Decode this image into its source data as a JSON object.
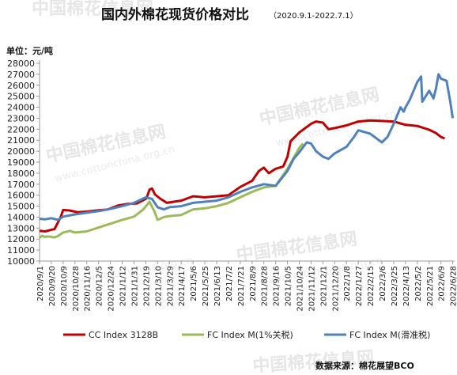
{
  "chart_data": {
    "type": "line",
    "title": "国内外棉花现货价格对比",
    "subtitle": "（2020.9.1-2022.7.1）",
    "unit_label": "单位：元/吨",
    "source": "数据来源：棉花展望BCO",
    "watermark": {
      "text": "中国棉花信息网",
      "url": "www.cottonchina.org.cn"
    },
    "ylim": [
      10000,
      28000
    ],
    "ytick_step": 1000,
    "grid": false,
    "legend_position": "bottom",
    "x_tick_labels": [
      "2020/9/1",
      "2020/9/20",
      "2020/10/9",
      "2020/10/28",
      "2020/11/16",
      "2020/12/5",
      "2020/12/24",
      "2021/1/12",
      "2021/1/31",
      "2021/2/19",
      "2021/3/10",
      "2021/3/29",
      "2021/4/17",
      "2021/5/6",
      "2021/5/25",
      "2021/6/13",
      "2021/7/2",
      "2021/7/21",
      "2021/8/9",
      "2021/8/28",
      "2021/9/16",
      "2021/10/5",
      "2021/10/24",
      "2021/11/12",
      "2021/12/1",
      "2021/12/20",
      "2022/1/8",
      "2022/1/27",
      "2022/2/15",
      "2022/3/6",
      "2022/3/25",
      "2022/4/13",
      "2022/5/2",
      "2022/5/21",
      "2022/6/9",
      "2022/6/28"
    ],
    "series": [
      {
        "name": "CC Index 3128B",
        "color": "#c00000",
        "points": [
          [
            "2020-09-01",
            12750
          ],
          [
            "2020-09-10",
            12700
          ],
          [
            "2020-09-20",
            12850
          ],
          [
            "2020-09-25",
            12900
          ],
          [
            "2020-10-05",
            14000
          ],
          [
            "2020-10-09",
            14650
          ],
          [
            "2020-10-20",
            14600
          ],
          [
            "2020-11-01",
            14450
          ],
          [
            "2020-11-16",
            14500
          ],
          [
            "2020-12-01",
            14600
          ],
          [
            "2020-12-20",
            14700
          ],
          [
            "2021-01-05",
            15050
          ],
          [
            "2021-01-20",
            15200
          ],
          [
            "2021-02-05",
            15250
          ],
          [
            "2021-02-20",
            15700
          ],
          [
            "2021-02-25",
            16500
          ],
          [
            "2021-03-01",
            16600
          ],
          [
            "2021-03-06",
            16050
          ],
          [
            "2021-03-15",
            15650
          ],
          [
            "2021-03-25",
            15300
          ],
          [
            "2021-04-05",
            15400
          ],
          [
            "2021-04-17",
            15500
          ],
          [
            "2021-05-06",
            15900
          ],
          [
            "2021-05-25",
            15800
          ],
          [
            "2021-06-13",
            15900
          ],
          [
            "2021-07-02",
            16000
          ],
          [
            "2021-07-21",
            16750
          ],
          [
            "2021-08-09",
            17300
          ],
          [
            "2021-08-20",
            18200
          ],
          [
            "2021-08-28",
            18500
          ],
          [
            "2021-09-05",
            18000
          ],
          [
            "2021-09-16",
            18400
          ],
          [
            "2021-09-28",
            18600
          ],
          [
            "2021-10-05",
            19500
          ],
          [
            "2021-10-10",
            20900
          ],
          [
            "2021-10-24",
            21700
          ],
          [
            "2021-11-05",
            22200
          ],
          [
            "2021-11-12",
            22500
          ],
          [
            "2021-11-20",
            22700
          ],
          [
            "2021-12-01",
            22600
          ],
          [
            "2021-12-10",
            22000
          ],
          [
            "2021-12-20",
            22100
          ],
          [
            "2022-01-08",
            22350
          ],
          [
            "2022-01-27",
            22700
          ],
          [
            "2022-02-15",
            22800
          ],
          [
            "2022-03-06",
            22750
          ],
          [
            "2022-03-25",
            22700
          ],
          [
            "2022-04-13",
            22400
          ],
          [
            "2022-05-02",
            22300
          ],
          [
            "2022-05-21",
            21950
          ],
          [
            "2022-06-01",
            21650
          ],
          [
            "2022-06-09",
            21300
          ],
          [
            "2022-06-15",
            21150
          ]
        ]
      },
      {
        "name": "FC Index M(1%关税)",
        "color": "#9bbb59",
        "points": [
          [
            "2020-09-01",
            12100
          ],
          [
            "2020-09-05",
            12300
          ],
          [
            "2020-09-10",
            12200
          ],
          [
            "2020-09-15",
            12250
          ],
          [
            "2020-09-20",
            12200
          ],
          [
            "2020-09-25",
            12150
          ],
          [
            "2020-10-01",
            12300
          ],
          [
            "2020-10-09",
            12600
          ],
          [
            "2020-10-20",
            12750
          ],
          [
            "2020-10-28",
            12600
          ],
          [
            "2020-11-16",
            12700
          ],
          [
            "2020-12-05",
            13050
          ],
          [
            "2020-12-24",
            13400
          ],
          [
            "2021-01-12",
            13750
          ],
          [
            "2021-01-31",
            14050
          ],
          [
            "2021-02-15",
            14700
          ],
          [
            "2021-02-25",
            15400
          ],
          [
            "2021-03-05",
            14500
          ],
          [
            "2021-03-10",
            13750
          ],
          [
            "2021-03-20",
            14000
          ],
          [
            "2021-03-29",
            14100
          ],
          [
            "2021-04-17",
            14200
          ],
          [
            "2021-05-06",
            14700
          ],
          [
            "2021-05-25",
            14800
          ],
          [
            "2021-06-13",
            15000
          ],
          [
            "2021-07-02",
            15300
          ],
          [
            "2021-07-21",
            15800
          ],
          [
            "2021-08-09",
            16300
          ],
          [
            "2021-08-28",
            16700
          ],
          [
            "2021-09-16",
            16850
          ],
          [
            "2021-10-05",
            18400
          ],
          [
            "2021-10-24",
            20300
          ],
          [
            "2021-10-30",
            20700
          ]
        ]
      },
      {
        "name": "FC Index M(滑准税)",
        "color": "#4f81bd",
        "points": [
          [
            "2020-09-01",
            13850
          ],
          [
            "2020-09-10",
            13800
          ],
          [
            "2020-09-20",
            13900
          ],
          [
            "2020-10-01",
            13750
          ],
          [
            "2020-10-09",
            14050
          ],
          [
            "2020-10-28",
            14250
          ],
          [
            "2020-11-16",
            14400
          ],
          [
            "2020-12-05",
            14550
          ],
          [
            "2020-12-24",
            14750
          ],
          [
            "2021-01-12",
            15000
          ],
          [
            "2021-01-31",
            15300
          ],
          [
            "2021-02-19",
            15800
          ],
          [
            "2021-03-01",
            15650
          ],
          [
            "2021-03-10",
            14900
          ],
          [
            "2021-03-20",
            14700
          ],
          [
            "2021-03-29",
            14900
          ],
          [
            "2021-04-17",
            15000
          ],
          [
            "2021-05-06",
            15300
          ],
          [
            "2021-05-25",
            15400
          ],
          [
            "2021-06-13",
            15500
          ],
          [
            "2021-07-02",
            15800
          ],
          [
            "2021-07-21",
            16300
          ],
          [
            "2021-08-09",
            16700
          ],
          [
            "2021-08-28",
            17000
          ],
          [
            "2021-09-16",
            16850
          ],
          [
            "2021-10-05",
            18200
          ],
          [
            "2021-10-15",
            19300
          ],
          [
            "2021-10-24",
            19900
          ],
          [
            "2021-11-05",
            20800
          ],
          [
            "2021-11-12",
            20700
          ],
          [
            "2021-11-20",
            20000
          ],
          [
            "2021-12-01",
            19500
          ],
          [
            "2021-12-10",
            19300
          ],
          [
            "2021-12-20",
            19800
          ],
          [
            "2022-01-08",
            20400
          ],
          [
            "2022-01-20",
            21300
          ],
          [
            "2022-01-27",
            21900
          ],
          [
            "2022-02-15",
            21600
          ],
          [
            "2022-03-06",
            20800
          ],
          [
            "2022-03-15",
            21300
          ],
          [
            "2022-03-25",
            22500
          ],
          [
            "2022-04-05",
            24000
          ],
          [
            "2022-04-10",
            23600
          ],
          [
            "2022-04-13",
            24000
          ],
          [
            "2022-04-20",
            24700
          ],
          [
            "2022-05-02",
            26300
          ],
          [
            "2022-05-08",
            26800
          ],
          [
            "2022-05-10",
            24500
          ],
          [
            "2022-05-21",
            25500
          ],
          [
            "2022-05-28",
            24800
          ],
          [
            "2022-06-01",
            25700
          ],
          [
            "2022-06-05",
            27000
          ],
          [
            "2022-06-09",
            26600
          ],
          [
            "2022-06-18",
            26400
          ],
          [
            "2022-06-24",
            24500
          ],
          [
            "2022-06-28",
            23000
          ]
        ]
      }
    ]
  }
}
